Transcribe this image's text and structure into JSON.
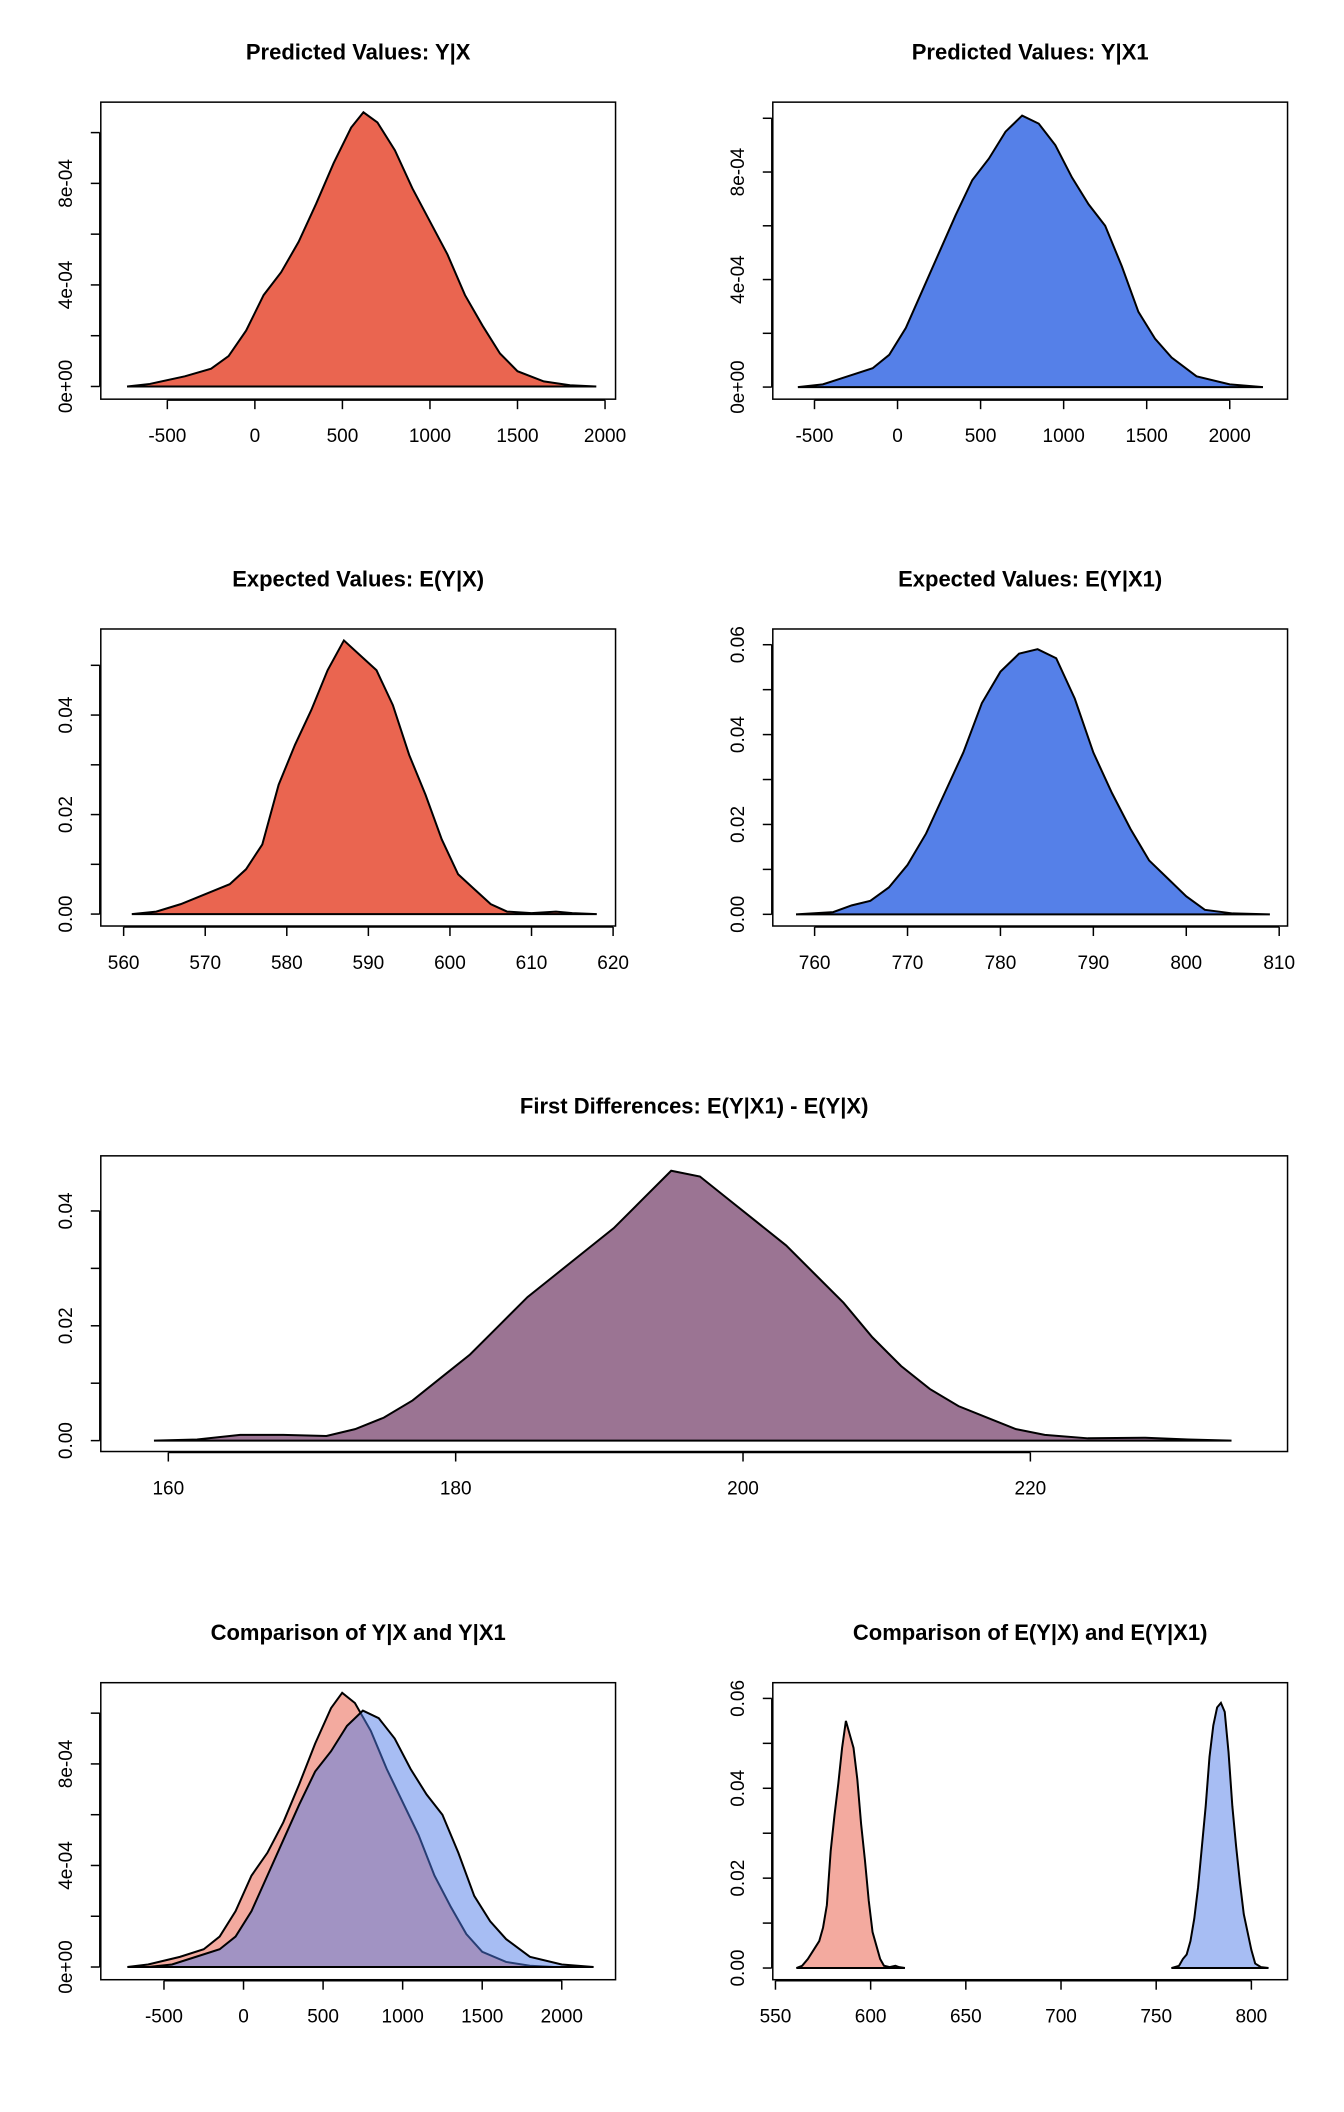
{
  "chart_data": [
    {
      "type": "density",
      "title": "Predicted Values: Y|X",
      "series": [
        {
          "color": "#EA6550",
          "x": [
            -730,
            -600,
            -400,
            -250,
            -150,
            -50,
            50,
            150,
            250,
            350,
            450,
            550,
            620,
            700,
            800,
            900,
            1000,
            1100,
            1200,
            1300,
            1400,
            1500,
            1650,
            1800,
            1950
          ],
          "values": [
            0,
            1e-05,
            4e-05,
            7e-05,
            0.00012,
            0.00022,
            0.00036,
            0.00045,
            0.00057,
            0.00072,
            0.00088,
            0.00102,
            0.00108,
            0.00104,
            0.00093,
            0.00078,
            0.00065,
            0.00052,
            0.00036,
            0.00024,
            0.00013,
            6e-05,
            2e-05,
            5e-06,
            0
          ]
        }
      ],
      "xlim": [
        -880,
        2060
      ],
      "ylim": [
        -5e-05,
        0.00112
      ],
      "xticks": [
        -500,
        0,
        500,
        1000,
        1500,
        2000
      ],
      "yticks": [
        {
          "value": 0,
          "label": "0e+00"
        },
        {
          "value": 0.0002,
          "label": ""
        },
        {
          "value": 0.0004,
          "label": "4e-04"
        },
        {
          "value": 0.0006,
          "label": ""
        },
        {
          "value": 0.0008,
          "label": "8e-04"
        },
        {
          "value": 0.001,
          "label": ""
        }
      ]
    },
    {
      "type": "density",
      "title": "Predicted Values: Y|X1",
      "series": [
        {
          "color": "#5580E8",
          "x": [
            -600,
            -450,
            -300,
            -150,
            -50,
            50,
            150,
            250,
            350,
            450,
            550,
            650,
            750,
            850,
            950,
            1050,
            1150,
            1250,
            1350,
            1450,
            1550,
            1650,
            1800,
            2000,
            2200
          ],
          "values": [
            0,
            1e-05,
            4e-05,
            7e-05,
            0.00012,
            0.00022,
            0.00036,
            0.0005,
            0.00064,
            0.00077,
            0.00085,
            0.00095,
            0.00101,
            0.00098,
            0.0009,
            0.00078,
            0.00068,
            0.0006,
            0.00045,
            0.00028,
            0.00018,
            0.00011,
            4e-05,
            1e-05,
            0
          ]
        }
      ],
      "xlim": [
        -751,
        2348
      ],
      "ylim": [
        -4.5e-05,
        0.00106
      ],
      "xticks": [
        -500,
        0,
        500,
        1000,
        1500,
        2000
      ],
      "yticks": [
        {
          "value": 0,
          "label": "0e+00"
        },
        {
          "value": 0.0002,
          "label": ""
        },
        {
          "value": 0.0004,
          "label": "4e-04"
        },
        {
          "value": 0.0006,
          "label": ""
        },
        {
          "value": 0.0008,
          "label": "8e-04"
        },
        {
          "value": 0.001,
          "label": ""
        }
      ]
    },
    {
      "type": "density",
      "title": "Expected Values: E(Y|X)",
      "series": [
        {
          "color": "#EA6550",
          "x": [
            561,
            564,
            567,
            570,
            573,
            575,
            577,
            579,
            581,
            583,
            585,
            587,
            589,
            591,
            593,
            595,
            597,
            599,
            601,
            603,
            605,
            607,
            610,
            613,
            615,
            618
          ],
          "values": [
            0,
            0.0005,
            0.002,
            0.004,
            0.006,
            0.009,
            0.014,
            0.026,
            0.034,
            0.041,
            0.049,
            0.055,
            0.052,
            0.049,
            0.042,
            0.032,
            0.024,
            0.015,
            0.008,
            0.005,
            0.002,
            0.0005,
            0.0002,
            0.0005,
            0.0002,
            0
          ]
        }
      ],
      "xlim": [
        557.2,
        620.3
      ],
      "ylim": [
        -0.0024,
        0.0573
      ],
      "xticks": [
        560,
        570,
        580,
        590,
        600,
        610,
        620
      ],
      "yticks": [
        {
          "value": 0,
          "label": "0.00"
        },
        {
          "value": 0.01,
          "label": ""
        },
        0.02,
        {
          "value": 0.03,
          "label": ""
        },
        0.04,
        {
          "value": 0.05,
          "label": ""
        }
      ]
    },
    {
      "type": "density",
      "title": "Expected Values: E(Y|X1)",
      "series": [
        {
          "color": "#5580E8",
          "x": [
            758,
            762,
            764,
            766,
            768,
            770,
            772,
            774,
            776,
            778,
            780,
            782,
            784,
            786,
            788,
            790,
            792,
            794,
            796,
            798,
            800,
            802,
            805,
            809
          ],
          "values": [
            0,
            0.0005,
            0.002,
            0.003,
            0.006,
            0.011,
            0.018,
            0.027,
            0.036,
            0.047,
            0.054,
            0.058,
            0.059,
            0.057,
            0.048,
            0.036,
            0.027,
            0.019,
            0.012,
            0.008,
            0.004,
            0.001,
            0.0002,
            0
          ]
        }
      ],
      "xlim": [
        755.5,
        810.9
      ],
      "ylim": [
        -0.0026,
        0.0635
      ],
      "xticks": [
        760,
        770,
        780,
        790,
        800,
        810
      ],
      "yticks": [
        {
          "value": 0,
          "label": "0.00"
        },
        {
          "value": 0.01,
          "label": ""
        },
        0.02,
        {
          "value": 0.03,
          "label": ""
        },
        0.04,
        {
          "value": 0.05,
          "label": ""
        },
        0.06
      ]
    },
    {
      "type": "density",
      "title": "First Differences: E(Y|X1) - E(Y|X)",
      "series": [
        {
          "color": "#9B7493",
          "x": [
            159,
            162,
            165,
            168,
            171,
            173,
            175,
            177,
            179,
            181,
            183,
            185,
            187,
            189,
            191,
            193,
            195,
            197,
            199,
            201,
            203,
            205,
            207,
            209,
            211,
            213,
            215,
            217,
            219,
            221,
            224,
            228,
            231,
            234
          ],
          "values": [
            0,
            0.0002,
            0.001,
            0.001,
            0.0008,
            0.002,
            0.004,
            0.007,
            0.011,
            0.015,
            0.02,
            0.025,
            0.029,
            0.033,
            0.037,
            0.042,
            0.047,
            0.046,
            0.042,
            0.038,
            0.034,
            0.029,
            0.024,
            0.018,
            0.013,
            0.009,
            0.006,
            0.004,
            0.002,
            0.001,
            0.0004,
            0.0005,
            0.0002,
            0
          ]
        }
      ],
      "xlim": [
        155.3,
        237.9
      ],
      "ylim": [
        -0.0019,
        0.0496
      ],
      "xticks": [
        160,
        180,
        200,
        220
      ],
      "yticks": [
        {
          "value": 0,
          "label": "0.00"
        },
        {
          "value": 0.01,
          "label": ""
        },
        0.02,
        {
          "value": 0.03,
          "label": ""
        },
        0.04
      ]
    },
    {
      "type": "density",
      "title": "Comparison of Y|X and Y|X1",
      "series": [
        {
          "color": "#E8553F",
          "alpha": 0.5,
          "x": [
            -730,
            -600,
            -400,
            -250,
            -150,
            -50,
            50,
            150,
            250,
            350,
            450,
            550,
            620,
            700,
            800,
            900,
            1000,
            1100,
            1200,
            1300,
            1400,
            1500,
            1650,
            1800,
            1950
          ],
          "values": [
            0,
            1e-05,
            4e-05,
            7e-05,
            0.00012,
            0.00022,
            0.00036,
            0.00045,
            0.00057,
            0.00072,
            0.00088,
            0.00102,
            0.00108,
            0.00104,
            0.00093,
            0.00078,
            0.00065,
            0.00052,
            0.00036,
            0.00024,
            0.00013,
            6e-05,
            2e-05,
            5e-06,
            0
          ]
        },
        {
          "color": "#4F7BE8",
          "alpha": 0.5,
          "x": [
            -600,
            -450,
            -300,
            -150,
            -50,
            50,
            150,
            250,
            350,
            450,
            550,
            650,
            750,
            850,
            950,
            1050,
            1150,
            1250,
            1350,
            1450,
            1550,
            1650,
            1800,
            2000,
            2200
          ],
          "values": [
            0,
            1e-05,
            4e-05,
            7e-05,
            0.00012,
            0.00022,
            0.00036,
            0.0005,
            0.00064,
            0.00077,
            0.00085,
            0.00095,
            0.00101,
            0.00098,
            0.0009,
            0.00078,
            0.00068,
            0.0006,
            0.00045,
            0.00028,
            0.00018,
            0.00011,
            4e-05,
            1e-05,
            0
          ]
        }
      ],
      "xlim": [
        -897,
        2338
      ],
      "ylim": [
        -5e-05,
        0.00112
      ],
      "xticks": [
        -500,
        0,
        500,
        1000,
        1500,
        2000
      ],
      "yticks": [
        {
          "value": 0,
          "label": "0e+00"
        },
        {
          "value": 0.0002,
          "label": ""
        },
        {
          "value": 0.0004,
          "label": "4e-04"
        },
        {
          "value": 0.0006,
          "label": ""
        },
        {
          "value": 0.0008,
          "label": "8e-04"
        },
        {
          "value": 0.001,
          "label": ""
        }
      ]
    },
    {
      "type": "density",
      "title": "Comparison of E(Y|X) and E(Y|X1)",
      "series": [
        {
          "color": "#E8553F",
          "alpha": 0.5,
          "x": [
            561,
            564,
            567,
            570,
            573,
            575,
            577,
            579,
            581,
            583,
            585,
            587,
            589,
            591,
            593,
            595,
            597,
            599,
            601,
            603,
            605,
            607,
            610,
            613,
            615,
            618
          ],
          "values": [
            0,
            0.0005,
            0.002,
            0.004,
            0.006,
            0.009,
            0.014,
            0.026,
            0.034,
            0.041,
            0.049,
            0.055,
            0.052,
            0.049,
            0.042,
            0.032,
            0.024,
            0.015,
            0.008,
            0.005,
            0.002,
            0.0005,
            0.0002,
            0.0005,
            0.0002,
            0
          ]
        },
        {
          "color": "#4F7BE8",
          "alpha": 0.5,
          "x": [
            758,
            762,
            764,
            766,
            768,
            770,
            772,
            774,
            776,
            778,
            780,
            782,
            784,
            786,
            788,
            790,
            792,
            794,
            796,
            798,
            800,
            802,
            805,
            809
          ],
          "values": [
            0,
            0.0005,
            0.002,
            0.003,
            0.006,
            0.011,
            0.018,
            0.027,
            0.036,
            0.047,
            0.054,
            0.058,
            0.059,
            0.057,
            0.048,
            0.036,
            0.027,
            0.019,
            0.012,
            0.008,
            0.004,
            0.001,
            0.0002,
            0
          ]
        }
      ],
      "xlim": [
        548.6,
        819
      ],
      "ylim": [
        -0.0026,
        0.0635
      ],
      "xticks": [
        550,
        600,
        650,
        700,
        750,
        800
      ],
      "yticks": [
        {
          "value": 0,
          "label": "0.00"
        },
        {
          "value": 0.01,
          "label": ""
        },
        0.02,
        {
          "value": 0.03,
          "label": ""
        },
        0.04,
        {
          "value": 0.05,
          "label": ""
        },
        0.06
      ]
    }
  ]
}
